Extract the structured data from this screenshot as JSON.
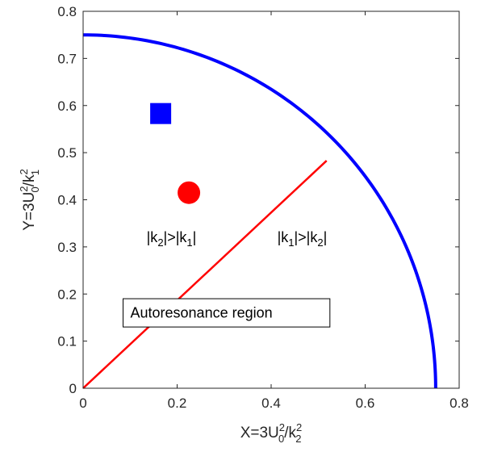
{
  "chart_data": {
    "type": "line",
    "xlim": [
      0,
      0.8
    ],
    "ylim": [
      0,
      0.8
    ],
    "x_ticks": [
      "0",
      "0.2",
      "0.4",
      "0.6",
      "0.8"
    ],
    "y_ticks": [
      "0",
      "0.1",
      "0.2",
      "0.3",
      "0.4",
      "0.5",
      "0.6",
      "0.7",
      "0.8"
    ],
    "xlabel": {
      "base": "X=3U",
      "sup1": "2",
      "sub1": "0",
      "mid": "/k",
      "sup2": "2",
      "sub2": "2"
    },
    "ylabel": {
      "base": "Y=3U",
      "sup1": "2",
      "sub1": "0",
      "mid": "/k",
      "sup2": "2",
      "sub2": "1"
    },
    "grid": false,
    "boundary_curve": {
      "color": "#0000ff",
      "description_points": [
        [
          0,
          0.75
        ],
        [
          0.1,
          0.745
        ],
        [
          0.2,
          0.722
        ],
        [
          0.3,
          0.68
        ],
        [
          0.4,
          0.612
        ],
        [
          0.5,
          0.505
        ],
        [
          0.6,
          0.36
        ],
        [
          0.7,
          0.18
        ],
        [
          0.75,
          0
        ]
      ]
    },
    "divider_line": {
      "color": "#ff0000",
      "points": [
        [
          0,
          0
        ],
        [
          0.518,
          0.483
        ]
      ]
    },
    "markers": [
      {
        "shape": "square",
        "x": 0.165,
        "y": 0.583,
        "color": "#0000ff"
      },
      {
        "shape": "circle",
        "x": 0.225,
        "y": 0.415,
        "color": "#ff0000"
      }
    ],
    "annotations": [
      {
        "id": "k2-gt-k1",
        "x": 0.135,
        "y": 0.31,
        "parts": [
          "|k",
          "2",
          "|>|k",
          "1",
          "|"
        ]
      },
      {
        "id": "k1-gt-k2",
        "x": 0.413,
        "y": 0.31,
        "parts": [
          "|k",
          "1",
          "|>|k",
          "2",
          "|"
        ]
      }
    ],
    "boxed_label": {
      "text": "Autoresonance region",
      "x0": 0.085,
      "x1": 0.525,
      "y0": 0.13,
      "y1": 0.19
    }
  }
}
